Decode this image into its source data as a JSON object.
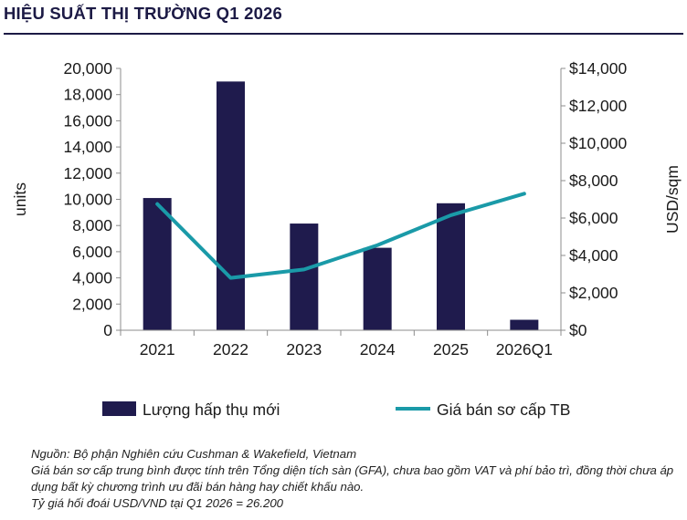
{
  "title": "HIỆU SUẤT THỊ TRƯỜNG Q1 2026",
  "chart_data": {
    "type": "bar+line",
    "categories": [
      "2021",
      "2022",
      "2023",
      "2024",
      "2025",
      "2026Q1"
    ],
    "series": [
      {
        "name": "Lượng hấp thụ mới",
        "type": "bar",
        "axis": "left",
        "color": "#1f1b4d",
        "values": [
          10100,
          19000,
          8150,
          6300,
          9700,
          800
        ]
      },
      {
        "name": "Giá bán sơ cấp TB",
        "type": "line",
        "axis": "right",
        "color": "#1a9aa8",
        "values": [
          6750,
          2800,
          3250,
          4550,
          6150,
          7300
        ]
      }
    ],
    "y_left": {
      "label": "units",
      "min": 0,
      "max": 20000,
      "ticks": [
        "0",
        "2,000",
        "4,000",
        "6,000",
        "8,000",
        "10,000",
        "12,000",
        "14,000",
        "16,000",
        "18,000",
        "20,000"
      ]
    },
    "y_right": {
      "label": "USD/sqm",
      "min": 0,
      "max": 14000,
      "ticks": [
        "$0",
        "$2,000",
        "$4,000",
        "$6,000",
        "$8,000",
        "$10,000",
        "$12,000",
        "$14,000"
      ]
    },
    "grid": false,
    "legend": "bottom"
  },
  "notes": [
    "Nguồn: Bộ phận Nghiên cứu Cushman & Wakefield, Vietnam",
    "Giá bán sơ cấp trung bình được tính trên Tổng diện tích sàn (GFA), chưa bao gồm VAT và phí bảo trì, đồng thời chưa áp dụng bất kỳ chương trình ưu đãi bán hàng hay chiết khấu nào.",
    "Tỷ giá hối đoái USD/VND tại Q1 2026 = 26.200"
  ]
}
